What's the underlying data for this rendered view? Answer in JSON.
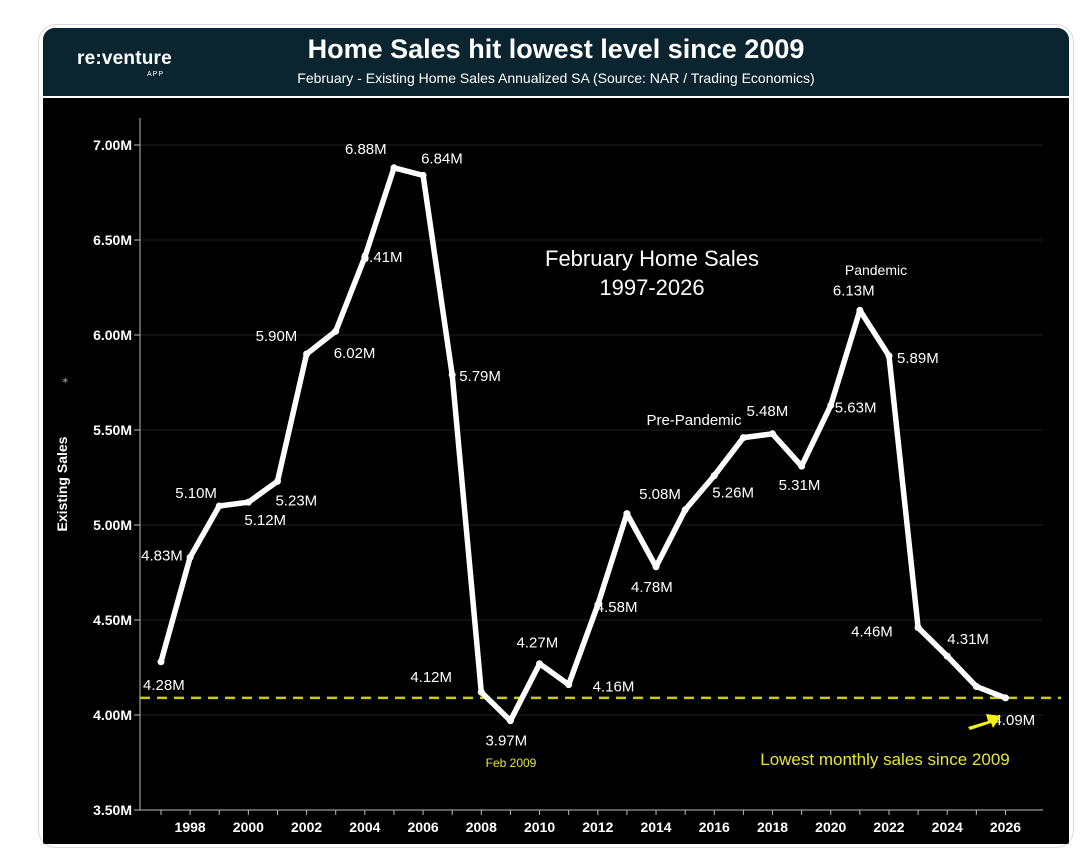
{
  "header": {
    "logo": "re:venture",
    "logo_sub": "APP",
    "title": "Home Sales hit lowest level since 2009",
    "subtitle": "February - Existing Home Sales Annualized SA (Source: NAR / Trading Economics)"
  },
  "colors": {
    "background": "#000000",
    "header_bg": "#0b2530",
    "line": "#ffffff",
    "reference_line": "#c8c81e",
    "highlight_text": "#e6e632",
    "arrow": "#f2f20a"
  },
  "chart_data": {
    "type": "line",
    "title": "February Home Sales",
    "subtitle": "1997-2026",
    "ylabel": "Existing Sales",
    "xlabel": "",
    "ylim": [
      3.5,
      7.1
    ],
    "xlim": [
      1996.2,
      2026.8
    ],
    "yticks": [
      3.5,
      4.0,
      4.5,
      5.0,
      5.5,
      6.0,
      6.5,
      7.0
    ],
    "ytick_labels": [
      "3.50M",
      "4.00M",
      "4.50M",
      "5.00M",
      "5.50M",
      "6.00M",
      "6.50M",
      "7.00M"
    ],
    "xticks": [
      1998,
      2000,
      2002,
      2004,
      2006,
      2008,
      2010,
      2012,
      2014,
      2016,
      2018,
      2020,
      2022,
      2024,
      2026
    ],
    "xtick_labels": [
      "1998",
      "2000",
      "2002",
      "2004",
      "2006",
      "2008",
      "2010",
      "2012",
      "2014",
      "2016",
      "2018",
      "2020",
      "2022",
      "2024",
      "2026"
    ],
    "x": [
      1997,
      1998,
      1999,
      2000,
      2001,
      2002,
      2003,
      2004,
      2005,
      2006,
      2007,
      2008,
      2009,
      2010,
      2011,
      2012,
      2013,
      2014,
      2015,
      2016,
      2017,
      2018,
      2019,
      2020,
      2021,
      2022,
      2023,
      2024,
      2025,
      2026
    ],
    "values": [
      4.28,
      4.83,
      5.1,
      5.12,
      5.23,
      5.9,
      6.02,
      6.41,
      6.88,
      6.84,
      5.79,
      4.12,
      3.97,
      4.27,
      4.16,
      4.58,
      5.06,
      4.78,
      5.08,
      5.26,
      5.46,
      5.48,
      5.31,
      5.63,
      6.13,
      5.89,
      4.46,
      4.31,
      4.15,
      4.09
    ],
    "data_labels": [
      {
        "year": 1997,
        "text": "4.28M"
      },
      {
        "year": 1998,
        "text": "4.83M"
      },
      {
        "year": 1999,
        "text": "5.10M"
      },
      {
        "year": 2000,
        "text": "5.12M"
      },
      {
        "year": 2001,
        "text": "5.23M"
      },
      {
        "year": 2002,
        "text": "5.90M"
      },
      {
        "year": 2003,
        "text": "6.02M"
      },
      {
        "year": 2004,
        "text": "6.41M"
      },
      {
        "year": 2005,
        "text": "6.88M"
      },
      {
        "year": 2006,
        "text": "6.84M"
      },
      {
        "year": 2007,
        "text": "5.79M"
      },
      {
        "year": 2008,
        "text": "4.12M"
      },
      {
        "year": 2009,
        "text": "3.97M"
      },
      {
        "year": 2010,
        "text": "4.27M"
      },
      {
        "year": 2011,
        "text": "4.16M"
      },
      {
        "year": 2012,
        "text": "4.58M"
      },
      {
        "year": 2014,
        "text": "4.78M"
      },
      {
        "year": 2015,
        "text": "5.08M"
      },
      {
        "year": 2016,
        "text": "5.26M"
      },
      {
        "year": 2018,
        "text": "5.48M"
      },
      {
        "year": 2019,
        "text": "5.31M"
      },
      {
        "year": 2020,
        "text": "5.63M"
      },
      {
        "year": 2021,
        "text": "6.13M"
      },
      {
        "year": 2022,
        "text": "5.89M"
      },
      {
        "year": 2023,
        "text": "4.46M"
      },
      {
        "year": 2024,
        "text": "4.31M"
      },
      {
        "year": 2026,
        "text": "4.09M"
      }
    ],
    "reference_line": {
      "value": 4.09,
      "style": "dashed"
    },
    "annotations": {
      "feb_2009": "Feb 2009",
      "pre_pandemic": "Pre-Pandemic",
      "pandemic": "Pandemic",
      "lowest_note": "Lowest monthly sales since 2009"
    },
    "grid": true,
    "legend": "none"
  }
}
